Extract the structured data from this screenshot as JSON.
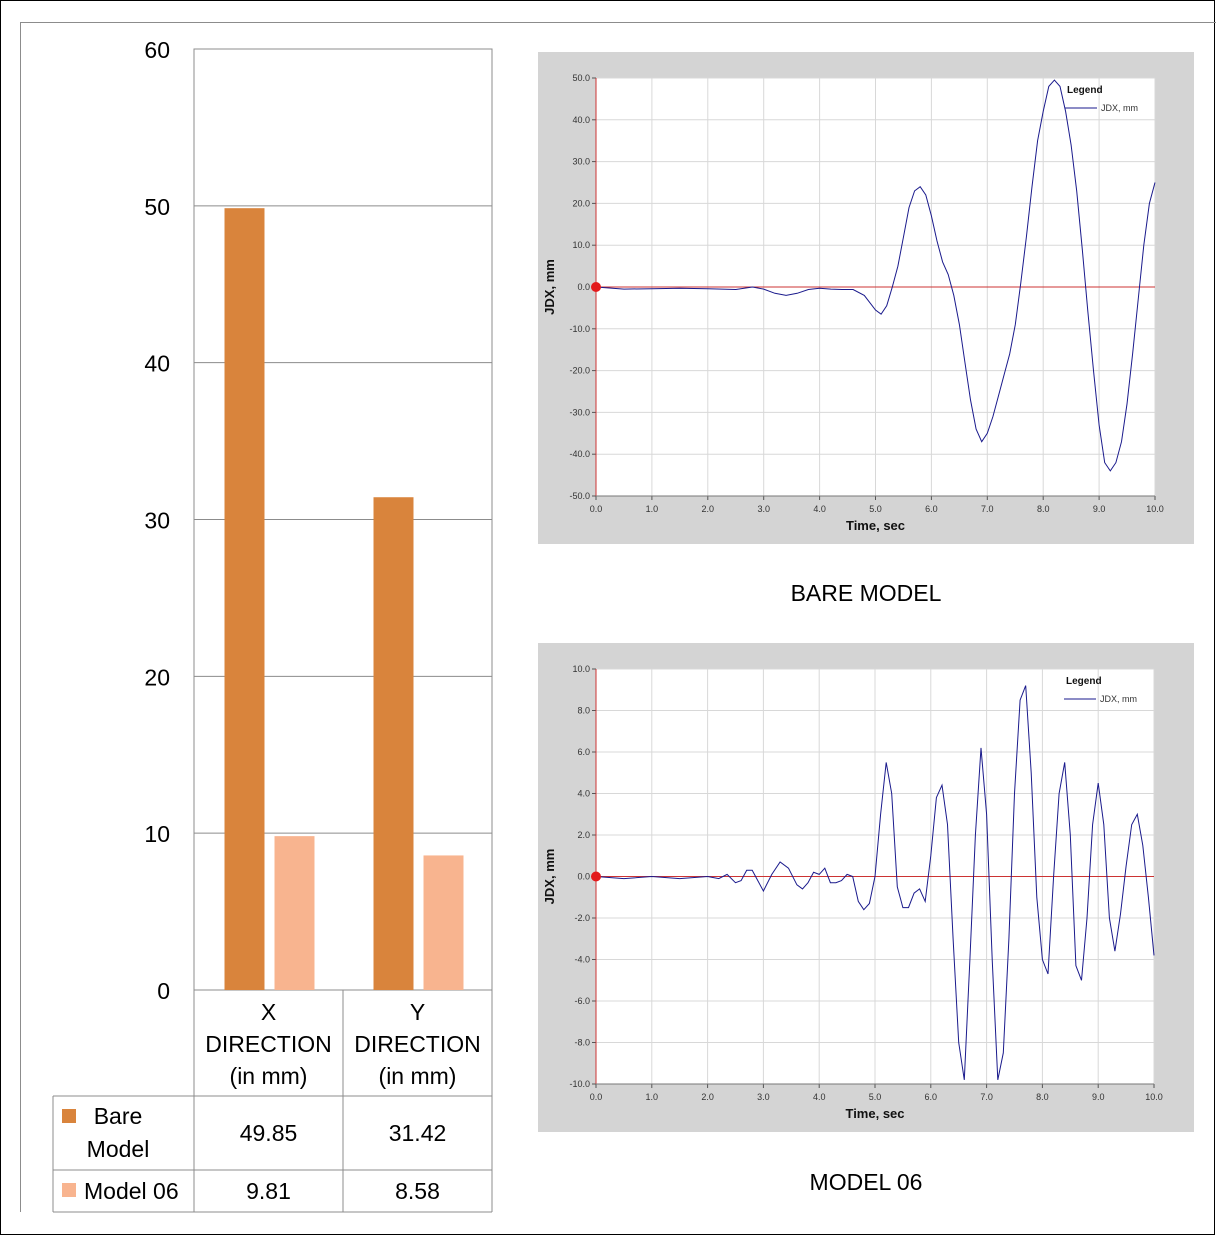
{
  "chart_data": [
    {
      "type": "bar",
      "categories": [
        "X DIRECTION (in mm)",
        "Y DIRECTION (in mm)"
      ],
      "category_lines": [
        [
          "X",
          "DIRECTION",
          "(in mm)"
        ],
        [
          "Y",
          "DIRECTION",
          "(in mm)"
        ]
      ],
      "series": [
        {
          "name": "Bare Model",
          "name_lines": [
            "Bare",
            "Model"
          ],
          "values": [
            49.85,
            31.42
          ],
          "labels": [
            "49.85",
            "31.42"
          ],
          "color": "#d9843c"
        },
        {
          "name": "Model 06",
          "name_lines": [
            "Model 06"
          ],
          "values": [
            9.81,
            8.58
          ],
          "labels": [
            "9.81",
            "8.58"
          ],
          "color": "#f8b48f"
        }
      ],
      "ylim": [
        0,
        60
      ],
      "yticks": [
        0,
        10,
        20,
        30,
        40,
        50,
        60
      ],
      "ytick_labels": [
        "0",
        "10",
        "20",
        "30",
        "40",
        "50",
        "60"
      ],
      "grid": true,
      "legend": "data-table"
    },
    {
      "type": "line",
      "caption": "BARE MODEL",
      "xlabel": "Time,  sec",
      "ylabel": "JDX,  mm",
      "xlim": [
        0,
        10
      ],
      "ylim": [
        -50,
        50
      ],
      "xticks": [
        "0.0",
        "1.0",
        "2.0",
        "3.0",
        "4.0",
        "5.0",
        "6.0",
        "7.0",
        "8.0",
        "9.0",
        "10.0"
      ],
      "yticks": [
        "50.0",
        "40.0",
        "30.0",
        "20.0",
        "10.0",
        "0.0",
        "-10.0",
        "-20.0",
        "-30.0",
        "-40.0",
        "-50.0"
      ],
      "ytick_values": [
        50,
        40,
        30,
        20,
        10,
        0,
        -10,
        -20,
        -30,
        -40,
        -50
      ],
      "legend_title": "Legend",
      "legend_position": "top-right",
      "series": [
        {
          "name": "JDX, mm",
          "color": "#1a1a8c",
          "x": [
            0,
            0.5,
            1,
            1.5,
            2,
            2.5,
            2.8,
            3.0,
            3.2,
            3.4,
            3.6,
            3.8,
            4.0,
            4.2,
            4.4,
            4.6,
            4.8,
            5.0,
            5.1,
            5.2,
            5.3,
            5.4,
            5.5,
            5.6,
            5.7,
            5.8,
            5.9,
            6.0,
            6.1,
            6.2,
            6.3,
            6.4,
            6.5,
            6.6,
            6.7,
            6.8,
            6.9,
            7.0,
            7.1,
            7.2,
            7.3,
            7.4,
            7.5,
            7.6,
            7.7,
            7.8,
            7.9,
            8.0,
            8.1,
            8.2,
            8.3,
            8.4,
            8.5,
            8.6,
            8.7,
            8.8,
            8.9,
            9.0,
            9.1,
            9.2,
            9.3,
            9.4,
            9.5,
            9.6,
            9.7,
            9.8,
            9.9,
            10.0
          ],
          "y": [
            0,
            -0.5,
            -0.4,
            -0.3,
            -0.4,
            -0.6,
            0,
            -0.5,
            -1.5,
            -2.0,
            -1.5,
            -0.6,
            -0.3,
            -0.5,
            -0.6,
            -0.6,
            -2,
            -5.5,
            -6.5,
            -4.5,
            0,
            5,
            12,
            19,
            23,
            24,
            22,
            17,
            11,
            6,
            3,
            -2,
            -9,
            -18,
            -27,
            -34,
            -37,
            -35,
            -31,
            -26,
            -21,
            -16,
            -9,
            1,
            12,
            24,
            35,
            42,
            48,
            49.5,
            48,
            42,
            34,
            23,
            9,
            -6,
            -20,
            -33,
            -42,
            -44,
            -42,
            -37,
            -28,
            -16,
            -3,
            10,
            20,
            25
          ]
        }
      ],
      "marker": {
        "x": 0,
        "y": 0,
        "color": "#e31a1c"
      }
    },
    {
      "type": "line",
      "caption": "MODEL 06",
      "xlabel": "Time,  sec",
      "ylabel": "JDX,  mm",
      "xlim": [
        0,
        10
      ],
      "ylim": [
        -10,
        10
      ],
      "xticks": [
        "0.0",
        "1.0",
        "2.0",
        "3.0",
        "4.0",
        "5.0",
        "6.0",
        "7.0",
        "8.0",
        "9.0",
        "10.0"
      ],
      "yticks": [
        "10.0",
        "8.0",
        "6.0",
        "4.0",
        "2.0",
        "0.0",
        "-2.0",
        "-4.0",
        "-6.0",
        "-8.0",
        "-10.0"
      ],
      "ytick_values": [
        10,
        8,
        6,
        4,
        2,
        0,
        -2,
        -4,
        -6,
        -8,
        -10
      ],
      "legend_title": "Legend",
      "legend_position": "top-right",
      "series": [
        {
          "name": "JDX, mm",
          "color": "#1a1a8c",
          "x": [
            0,
            0.5,
            1,
            1.5,
            2,
            2.2,
            2.35,
            2.5,
            2.6,
            2.7,
            2.8,
            2.9,
            3.0,
            3.15,
            3.3,
            3.45,
            3.6,
            3.7,
            3.8,
            3.9,
            4.0,
            4.1,
            4.2,
            4.3,
            4.4,
            4.5,
            4.6,
            4.7,
            4.8,
            4.9,
            5.0,
            5.1,
            5.2,
            5.3,
            5.4,
            5.5,
            5.6,
            5.7,
            5.8,
            5.9,
            6.0,
            6.1,
            6.2,
            6.3,
            6.4,
            6.5,
            6.6,
            6.7,
            6.8,
            6.9,
            7.0,
            7.1,
            7.2,
            7.3,
            7.4,
            7.5,
            7.6,
            7.7,
            7.8,
            7.9,
            8.0,
            8.1,
            8.2,
            8.3,
            8.4,
            8.5,
            8.6,
            8.7,
            8.8,
            8.9,
            9.0,
            9.1,
            9.2,
            9.3,
            9.4,
            9.5,
            9.6,
            9.7,
            9.8,
            9.9,
            10.0
          ],
          "y": [
            0,
            -0.1,
            0,
            -0.1,
            0,
            -0.1,
            0.1,
            -0.3,
            -0.2,
            0.3,
            0.3,
            -0.2,
            -0.7,
            0.1,
            0.7,
            0.4,
            -0.4,
            -0.6,
            -0.3,
            0.2,
            0.1,
            0.4,
            -0.3,
            -0.3,
            -0.2,
            0.1,
            0,
            -1.2,
            -1.6,
            -1.3,
            0,
            3,
            5.5,
            4,
            -0.5,
            -1.5,
            -1.5,
            -0.8,
            -0.6,
            -1.2,
            1,
            3.8,
            4.4,
            2.5,
            -3,
            -8,
            -9.8,
            -4,
            2,
            6.2,
            3,
            -4,
            -9.8,
            -8.5,
            -3,
            4,
            8.5,
            9.2,
            5,
            -1,
            -4,
            -4.7,
            0,
            4,
            5.5,
            2,
            -4.3,
            -5,
            -2,
            2.5,
            4.5,
            2.5,
            -2,
            -3.6,
            -1.8,
            0.5,
            2.5,
            3,
            1.5,
            -1,
            -3.8
          ]
        }
      ],
      "marker": {
        "x": 0,
        "y": 0,
        "color": "#e31a1c"
      }
    }
  ]
}
